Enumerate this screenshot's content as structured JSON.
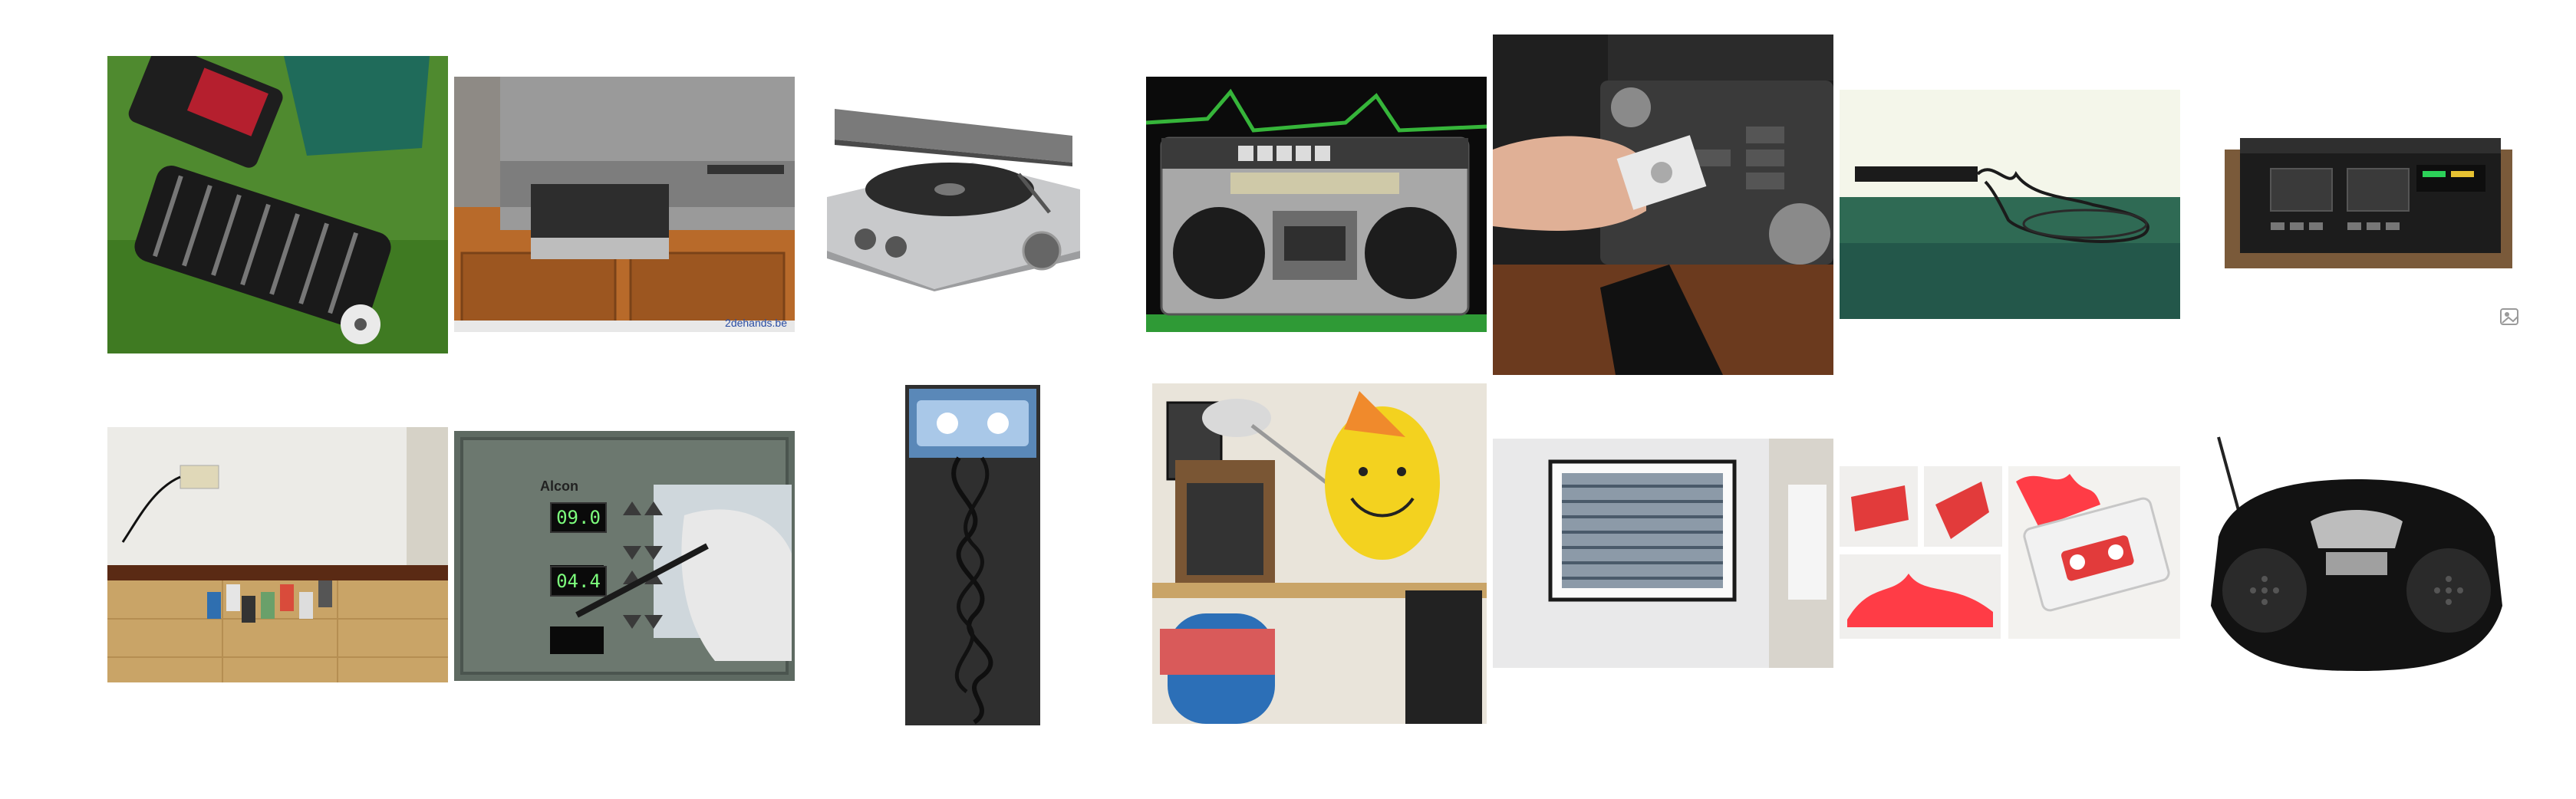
{
  "grid": {
    "tiles": [
      {
        "id": "lawnmower-reel"
      },
      {
        "id": "vcr-tape-door",
        "watermark": "2dehands.be"
      },
      {
        "id": "record-player"
      },
      {
        "id": "boombox-radio"
      },
      {
        "id": "car-cassette-adapter"
      },
      {
        "id": "tangled-tape-on-table"
      },
      {
        "id": "hifi-tape-deck"
      },
      {
        "id": "cassettes-on-floor"
      },
      {
        "id": "alcon-device",
        "brand": "Alcon",
        "readout_top": "09.0",
        "readout_bottom": "04.4"
      },
      {
        "id": "cassette-spilled-tape"
      },
      {
        "id": "desk-with-balloon"
      },
      {
        "id": "framed-tape-mosaic"
      },
      {
        "id": "red-feathered-cassette"
      },
      {
        "id": "black-cd-boombox"
      }
    ]
  },
  "icons": {
    "corner": "broken-image-icon"
  }
}
